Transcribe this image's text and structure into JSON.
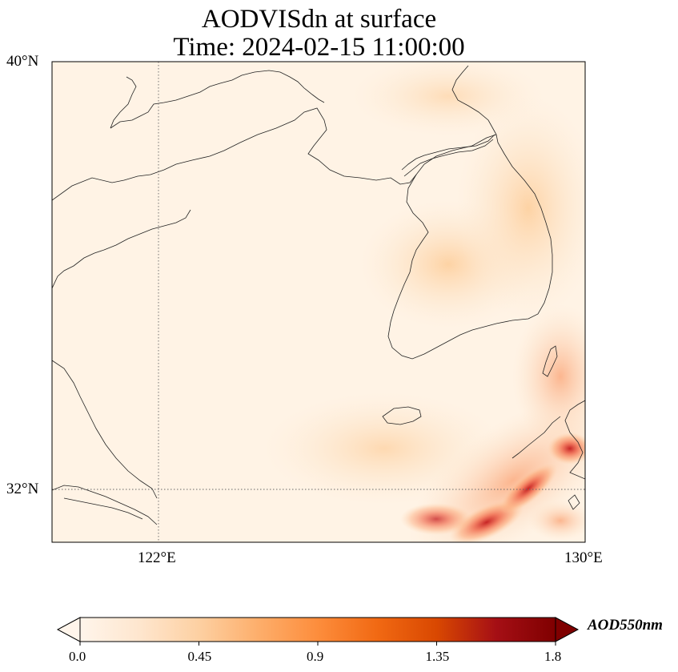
{
  "title": {
    "line1": "AODVISdn at surface",
    "line2": "Time: 2024-02-15 11:00:00"
  },
  "axes": {
    "lat_ticks": [
      "40°N",
      "32°N"
    ],
    "lon_ticks": [
      "122°E",
      "130°E"
    ],
    "lon_range": [
      120,
      130
    ],
    "lat_range": [
      31,
      40
    ],
    "gridlines": "dotted"
  },
  "colorbar": {
    "label": "AOD550nm",
    "tick_labels": [
      "0.0",
      "0.45",
      "0.9",
      "1.35",
      "1.8"
    ],
    "range": [
      0.0,
      1.8
    ],
    "extend": "both",
    "colormap": [
      "#fff5eb",
      "#fee6ce",
      "#fdd0a2",
      "#fdae6b",
      "#fd8d3c",
      "#f16913",
      "#d94801",
      "#a50f15",
      "#7f0000"
    ]
  },
  "chart_data": {
    "type": "heatmap",
    "variable": "AODVISdn at surface",
    "time": "2024-02-15 11:00:00",
    "units": "AOD550nm",
    "xlabel": "",
    "ylabel": "",
    "xlim": [
      120,
      130
    ],
    "ylim": [
      31,
      40
    ],
    "color_range": [
      0.0,
      1.8
    ],
    "hotspots": [
      {
        "lon": 127.4,
        "lat": 31.1,
        "value": 1.5
      },
      {
        "lon": 128.5,
        "lat": 31.7,
        "value": 1.3
      },
      {
        "lon": 129.7,
        "lat": 32.7,
        "value": 1.2
      },
      {
        "lon": 126.8,
        "lat": 36.1,
        "value": 0.35
      },
      {
        "lon": 129.8,
        "lat": 34.0,
        "value": 0.6
      }
    ]
  }
}
